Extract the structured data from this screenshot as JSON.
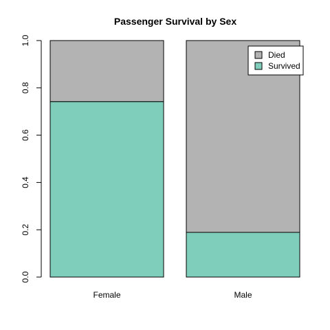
{
  "chart_data": {
    "type": "bar",
    "stacked": true,
    "title": "Passenger Survival by Sex",
    "xlabel": "",
    "ylabel": "",
    "categories": [
      "Female",
      "Male"
    ],
    "series": [
      {
        "name": "Survived",
        "values": [
          0.742,
          0.189
        ],
        "color": "#7fcdbb"
      },
      {
        "name": "Died",
        "values": [
          0.258,
          0.811
        ],
        "color": "#b3b3b3"
      }
    ],
    "ylim": [
      0,
      1
    ],
    "yticks": [
      "0.0",
      "0.2",
      "0.4",
      "0.6",
      "0.8",
      "1.0"
    ],
    "grid": false,
    "legend": {
      "position": "top-right",
      "entries": [
        "Died",
        "Survived"
      ]
    }
  }
}
